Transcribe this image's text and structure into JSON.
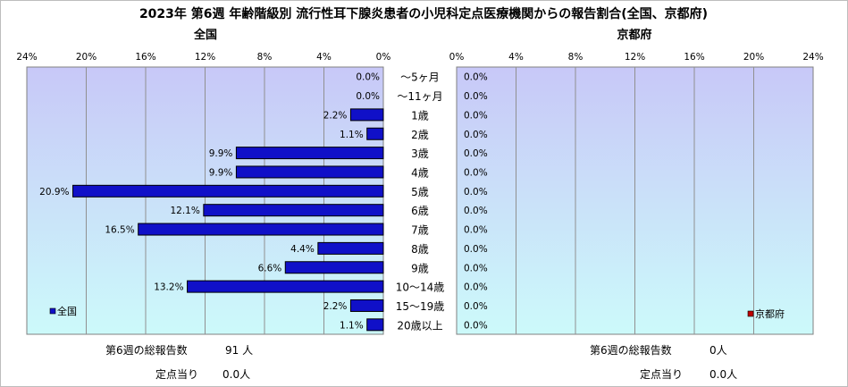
{
  "title": "2023年 第6週 年齢階級別 流行性耳下腺炎患者の小児科定点医療機関からの報告割合(全国、京都府)",
  "left_title": "全国",
  "right_title": "京都府",
  "left_stats": {
    "total_label": "第6週の総報告数",
    "total_value": "91 人",
    "per_label": "定点当り",
    "per_value": "0.0人"
  },
  "right_stats": {
    "total_label": "第6週の総報告数",
    "total_value": "0人",
    "per_label": "定点当り",
    "per_value": "0.0人"
  },
  "chart_data": [
    {
      "type": "bar",
      "orientation": "horizontal",
      "direction": "right-to-left",
      "title": "全国",
      "categories": [
        "～5ヶ月",
        "～11ヶ月",
        "1歳",
        "2歳",
        "3歳",
        "4歳",
        "5歳",
        "6歳",
        "7歳",
        "8歳",
        "9歳",
        "10～14歳",
        "15～19歳",
        "20歳以上"
      ],
      "values": [
        0.0,
        0.0,
        2.2,
        1.1,
        9.9,
        9.9,
        20.9,
        12.1,
        16.5,
        4.4,
        6.6,
        13.2,
        2.2,
        1.1
      ],
      "value_labels": [
        "0.0%",
        "0.0%",
        "2.2%",
        "1.1%",
        "9.9%",
        "9.9%",
        "20.9%",
        "12.1%",
        "16.5%",
        "4.4%",
        "6.6%",
        "13.2%",
        "2.2%",
        "1.1%"
      ],
      "xlim": [
        0,
        24
      ],
      "ticks": [
        "24%",
        "20%",
        "16%",
        "12%",
        "8%",
        "4%",
        "0%"
      ],
      "grid": true,
      "legend": {
        "position": "bottom-left",
        "entries": [
          "全国"
        ]
      },
      "bar_color": "#1010c8",
      "plot_bg_top": "#c8c8f8",
      "plot_bg_bottom": "#ccfafa"
    },
    {
      "type": "bar",
      "orientation": "horizontal",
      "direction": "left-to-right",
      "title": "京都府",
      "categories": [
        "～5ヶ月",
        "～11ヶ月",
        "1歳",
        "2歳",
        "3歳",
        "4歳",
        "5歳",
        "6歳",
        "7歳",
        "8歳",
        "9歳",
        "10～14歳",
        "15～19歳",
        "20歳以上"
      ],
      "values": [
        0.0,
        0.0,
        0.0,
        0.0,
        0.0,
        0.0,
        0.0,
        0.0,
        0.0,
        0.0,
        0.0,
        0.0,
        0.0,
        0.0
      ],
      "value_labels": [
        "0.0%",
        "0.0%",
        "0.0%",
        "0.0%",
        "0.0%",
        "0.0%",
        "0.0%",
        "0.0%",
        "0.0%",
        "0.0%",
        "0.0%",
        "0.0%",
        "0.0%",
        "0.0%"
      ],
      "xlim": [
        0,
        24
      ],
      "ticks": [
        "0%",
        "4%",
        "8%",
        "12%",
        "16%",
        "20%",
        "24%"
      ],
      "grid": true,
      "legend": {
        "position": "bottom-right",
        "entries": [
          "京都府"
        ]
      },
      "bar_color": "#c00000",
      "plot_bg_top": "#c8c8f8",
      "plot_bg_bottom": "#ccfafa"
    }
  ]
}
